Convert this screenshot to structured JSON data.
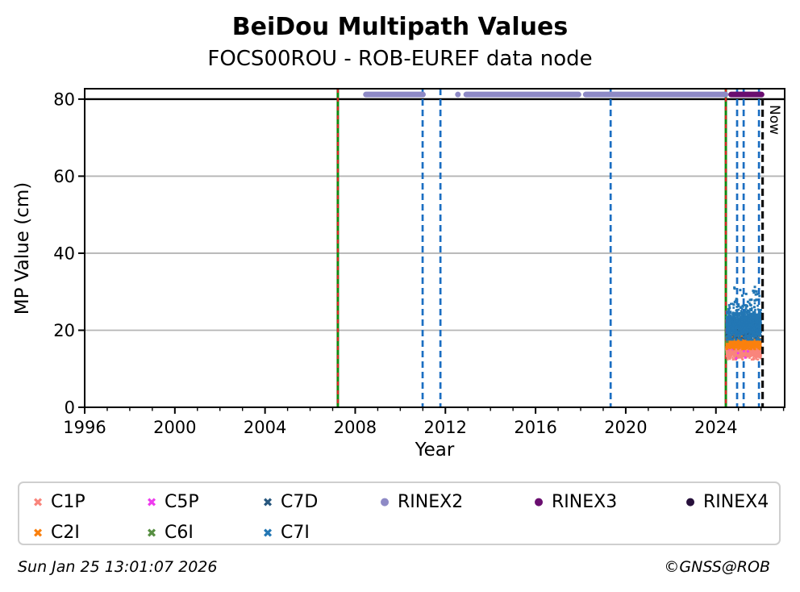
{
  "header": {
    "title": "BeiDou Multipath Values",
    "subtitle": "FOCS00ROU - ROB-EUREF data node"
  },
  "footer": {
    "timestamp": "Sun Jan 25 13:01:07 2026",
    "credit": "©GNSS@ROB"
  },
  "legend": {
    "items": [
      {
        "id": "C1P",
        "label": "C1P",
        "marker": "x",
        "color": "#f9857c",
        "row": 0,
        "col": 0
      },
      {
        "id": "C5P",
        "label": "C5P",
        "marker": "x",
        "color": "#ee3cee",
        "row": 0,
        "col": 1
      },
      {
        "id": "C7D",
        "label": "C7D",
        "marker": "x",
        "color": "#28577e",
        "row": 0,
        "col": 2
      },
      {
        "id": "RINEX2",
        "label": "RINEX2",
        "marker": "dot",
        "color": "#8e8ac6",
        "row": 0,
        "col": 3
      },
      {
        "id": "RINEX3",
        "label": "RINEX3",
        "marker": "dot",
        "color": "#6a0e70",
        "row": 0,
        "col": 4
      },
      {
        "id": "RINEX4",
        "label": "RINEX4",
        "marker": "dot",
        "color": "#27103b",
        "row": 0,
        "col": 5
      },
      {
        "id": "C2I",
        "label": "C2I",
        "marker": "x",
        "color": "#fa800e",
        "row": 1,
        "col": 0
      },
      {
        "id": "C6I",
        "label": "C6I",
        "marker": "x",
        "color": "#578f42",
        "row": 1,
        "col": 1
      },
      {
        "id": "C7I",
        "label": "C7I",
        "marker": "x",
        "color": "#2377b4",
        "row": 1,
        "col": 2
      }
    ]
  },
  "chart_data": {
    "type": "scatter",
    "title": "BeiDou Multipath Values",
    "subtitle": "FOCS00ROU - ROB-EUREF data node",
    "xlabel": "Year",
    "ylabel": "MP Value (cm)",
    "xlim": [
      1996,
      2027.05
    ],
    "ylim": [
      0,
      82.7
    ],
    "xticks": [
      1996,
      2000,
      2004,
      2008,
      2012,
      2016,
      2020,
      2024
    ],
    "xminor_step": 1,
    "yticks": [
      0,
      20,
      40,
      60,
      80
    ],
    "grid_y": [
      20,
      40,
      60
    ],
    "grid_color": "#b5b5b5",
    "top_line": {
      "y": 80,
      "color": "#000000"
    },
    "now_label": "Now",
    "now_x": 2026.07,
    "rinex_rows": [
      {
        "name": "RINEX2",
        "color": "#8e8ac6",
        "y": 81.2,
        "segments": [
          [
            2008.35,
            2011.13
          ],
          [
            2012.53,
            2012.58
          ],
          [
            2012.8,
            2018.03
          ],
          [
            2018.1,
            2024.55
          ]
        ]
      },
      {
        "name": "RINEX3",
        "color": "#6a0e70",
        "y": 81.2,
        "segments": [
          [
            2024.55,
            2026.15
          ]
        ]
      }
    ],
    "vlines": [
      {
        "x": 2007.23,
        "style": "event"
      },
      {
        "x": 2024.44,
        "style": "event"
      },
      {
        "x": 2010.99,
        "style": "change"
      },
      {
        "x": 2011.78,
        "style": "change"
      },
      {
        "x": 2019.33,
        "style": "change"
      },
      {
        "x": 2024.94,
        "style": "change"
      },
      {
        "x": 2025.23,
        "style": "change"
      },
      {
        "x": 2025.91,
        "style": "change"
      },
      {
        "x": 2026.07,
        "style": "now"
      }
    ],
    "vline_styles": {
      "event": {
        "color": "#118a11",
        "dash_color": "#dd2222"
      },
      "change": {
        "color": "#1b6ec2"
      },
      "now": {
        "color": "#111111"
      }
    },
    "series": [
      {
        "name": "C1P",
        "color": "#f9857c",
        "x_range": [
          2024.46,
          2026.0
        ],
        "y_mean": 14.7,
        "y_sd": 1.0,
        "y_clip": [
          12.4,
          16.8
        ],
        "count": 650
      },
      {
        "name": "C5P",
        "color": "#ee3cee",
        "x_range": [
          2024.5,
          2025.95
        ],
        "y_mean": 15.6,
        "y_sd": 1.1,
        "y_clip": [
          13.2,
          17.4
        ],
        "count": 14,
        "points": [
          [
            2025.96,
            20.5
          ],
          [
            2024.9,
            12.7
          ],
          [
            2025.3,
            12.9
          ]
        ]
      },
      {
        "name": "C2I",
        "color": "#fa800e",
        "x_range": [
          2024.46,
          2026.0
        ],
        "y_mean": 16.8,
        "y_sd": 0.8,
        "y_clip": [
          15.1,
          18.6
        ],
        "count": 750
      },
      {
        "name": "C6I",
        "color": "#578f42",
        "x_range": [
          2024.44,
          2024.62
        ],
        "y_mean": 20.0,
        "y_sd": 1.8,
        "y_clip": [
          17.0,
          23.5
        ],
        "count": 22
      },
      {
        "name": "C7D",
        "color": "#28577e",
        "x_range": [
          2024.46,
          2026.0
        ],
        "y_mean": 20.2,
        "y_sd": 1.1,
        "y_clip": [
          17.8,
          23.2
        ],
        "count": 380
      },
      {
        "name": "C7I",
        "color": "#2377b4",
        "x_range": [
          2024.46,
          2026.0
        ],
        "y_mean": 21.6,
        "y_sd": 1.9,
        "y_clip": [
          17.6,
          27.8
        ],
        "count": 1100,
        "outliers": {
          "count": 32,
          "x_range": [
            2024.75,
            2025.95
          ],
          "y_range": [
            26.0,
            31.3
          ]
        }
      }
    ],
    "legend_entries": [
      "C1P",
      "C5P",
      "C7D",
      "RINEX2",
      "RINEX3",
      "RINEX4",
      "C2I",
      "C6I",
      "C7I"
    ],
    "legend_position": "bottom"
  }
}
